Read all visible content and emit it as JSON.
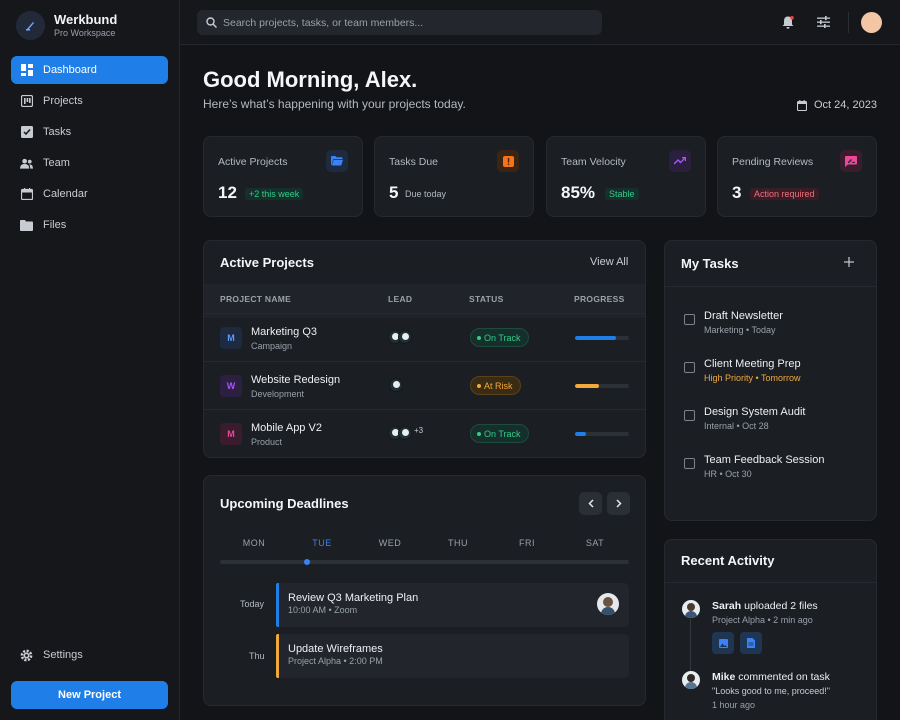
{
  "brand": {
    "name": "Werkbund",
    "subtitle": "Pro Workspace"
  },
  "sidebar": {
    "items": [
      {
        "label": "Dashboard",
        "icon": "dashboard-icon",
        "active": true
      },
      {
        "label": "Projects",
        "icon": "kanban-icon"
      },
      {
        "label": "Tasks",
        "icon": "checkbox-icon"
      },
      {
        "label": "Team",
        "icon": "group-icon"
      },
      {
        "label": "Calendar",
        "icon": "calendar-icon"
      },
      {
        "label": "Files",
        "icon": "folder-icon"
      }
    ],
    "settings_label": "Settings",
    "new_project_label": "New Project"
  },
  "search": {
    "placeholder": "Search projects, tasks, or team members..."
  },
  "header": {
    "greeting": "Good Morning, Alex.",
    "subtitle": "Here’s what’s happening with your projects today.",
    "date": "Oct 24, 2023"
  },
  "stats": [
    {
      "label": "Active Projects",
      "value": "12",
      "note": "+2 this week",
      "icon": "folder-open-icon",
      "accent": "#3b82f6"
    },
    {
      "label": "Tasks Due",
      "value": "5",
      "note": "Due today",
      "icon": "alert-icon",
      "accent": "#f97316"
    },
    {
      "label": "Team Velocity",
      "value": "85%",
      "note": "Stable",
      "icon": "trending-up-icon",
      "accent": "#a855f7"
    },
    {
      "label": "Pending Reviews",
      "value": "3",
      "note": "Action required",
      "icon": "rate-review-icon",
      "accent": "#ec4899"
    }
  ],
  "projects": {
    "title": "Active Projects",
    "view_all": "View All",
    "columns": [
      "PROJECT NAME",
      "LEAD",
      "STATUS",
      "PROGRESS"
    ],
    "rows": [
      {
        "initial": "M",
        "name": "Marketing Q3",
        "category": "Campaign",
        "status": "On Track",
        "progress": 0.75,
        "extra_leads": ""
      },
      {
        "initial": "W",
        "name": "Website Redesign",
        "category": "Development",
        "status": "At Risk",
        "progress": 0.45,
        "extra_leads": ""
      },
      {
        "initial": "M",
        "name": "Mobile App V2",
        "category": "Product",
        "status": "On Track",
        "progress": 0.2,
        "extra_leads": "+3"
      }
    ]
  },
  "tasks": {
    "title": "My Tasks",
    "items": [
      {
        "title": "Draft Newsletter",
        "meta": "Marketing • Today"
      },
      {
        "title": "Client Meeting Prep",
        "meta": "High Priority • Tomorrow"
      },
      {
        "title": "Design System Audit",
        "meta": "Internal • Oct 28"
      },
      {
        "title": "Team Feedback Session",
        "meta": "HR • Oct 30"
      }
    ]
  },
  "deadlines": {
    "title": "Upcoming Deadlines",
    "days": [
      "MON",
      "TUE",
      "WED",
      "THU",
      "FRI",
      "SAT"
    ],
    "active_day": "TUE",
    "events": [
      {
        "day": "Today",
        "title": "Review Q3 Marketing Plan",
        "meta": "10:00 AM • Zoom",
        "accent": "#1f7ee8"
      },
      {
        "day": "Thu",
        "title": "Update Wireframes",
        "meta": "Project Alpha • 2:00 PM",
        "accent": "#f2a93b"
      }
    ]
  },
  "activity": {
    "title": "Recent Activity",
    "items": [
      {
        "user": "Sarah",
        "action": " uploaded 2 files",
        "meta": "Project Alpha • 2 min ago"
      },
      {
        "user": "Mike",
        "action": " commented on task",
        "quote": "\"Looks good to me, proceed!\"",
        "meta": "1 hour ago"
      }
    ]
  }
}
